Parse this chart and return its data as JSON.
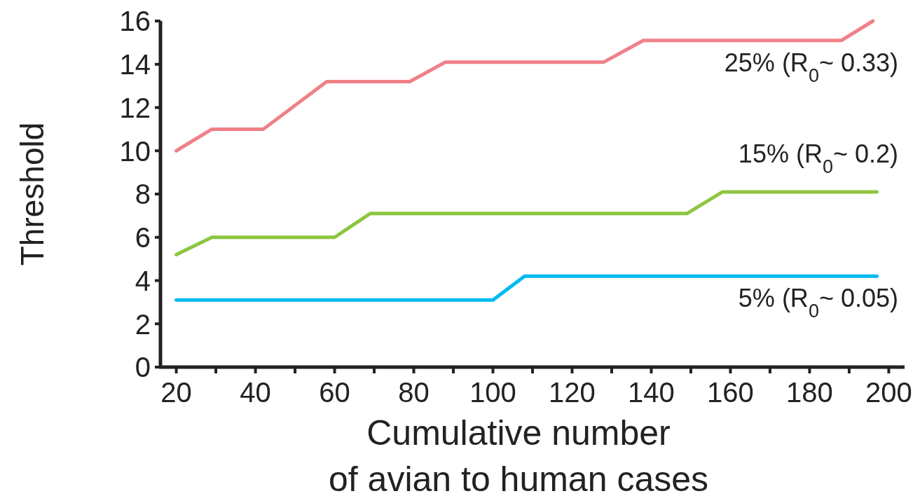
{
  "chart_data": {
    "type": "line",
    "xlabel": "Cumulative number\nof avian to human cases",
    "ylabel": "Threshold",
    "xlim": [
      16,
      204
    ],
    "ylim": [
      0,
      16
    ],
    "xticks": [
      20,
      {
        "value": 30,
        "label": null
      },
      40,
      {
        "value": 50,
        "label": null
      },
      60,
      {
        "value": 70,
        "label": null
      },
      80,
      {
        "value": 90,
        "label": null
      },
      100,
      {
        "value": 110,
        "label": null
      },
      120,
      {
        "value": 130,
        "label": null
      },
      140,
      {
        "value": 150,
        "label": null
      },
      160,
      {
        "value": 170,
        "label": null
      },
      180,
      {
        "value": 190,
        "label": null
      },
      200
    ],
    "yticks": [
      0,
      2,
      4,
      6,
      8,
      10,
      12,
      14,
      16
    ],
    "grid": false,
    "marker": "none",
    "line_style": "solid",
    "series": [
      {
        "name": "25% (R$_{0}$~ 0.33)",
        "color": "#f08088",
        "x": [
          20,
          29,
          42,
          58,
          79,
          88,
          128,
          138,
          188,
          196
        ],
        "values": [
          10,
          11,
          11,
          13.2,
          13.2,
          14.1,
          14.1,
          15.1,
          15.1,
          16
        ]
      },
      {
        "name": "15% (R$_{0}$~ 0.2)",
        "color": "#8cc63f",
        "x": [
          20,
          29,
          60,
          69,
          149,
          158,
          197
        ],
        "values": [
          5.2,
          6,
          6,
          7.1,
          7.1,
          8.1,
          8.1
        ]
      },
      {
        "name": "5% (R$_{0}$~ 0.05)",
        "color": "#00b9f2",
        "x": [
          20,
          100,
          108,
          197
        ],
        "values": [
          3.1,
          3.1,
          4.2,
          4.2
        ]
      }
    ]
  }
}
